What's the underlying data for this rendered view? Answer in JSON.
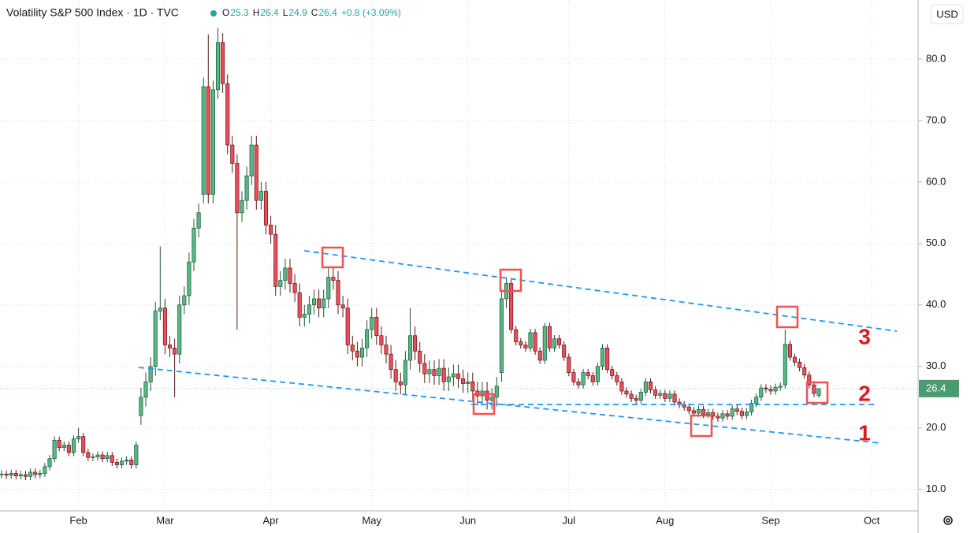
{
  "chart_data": {
    "type": "candlestick",
    "title": "Volatility S&P 500 Index · 1D · TVC",
    "ohlc_legend": [
      {
        "key": "O",
        "value": 25.3
      },
      {
        "key": "H",
        "value": 26.4
      },
      {
        "key": "L",
        "value": 24.9
      },
      {
        "key": "C",
        "value": 26.4
      }
    ],
    "change": "+0.8 (+3.09%)",
    "currency": "USD",
    "last_value": 26.4,
    "annotations": [
      "3",
      "2",
      "1"
    ],
    "up_color": "#53b987",
    "down_color": "#eb4d5c",
    "grid": true,
    "ylim": [
      6.5,
      89.6
    ],
    "yticks": [
      {
        "value": 10,
        "label": "10.0"
      },
      {
        "value": 20,
        "label": "20.0"
      },
      {
        "value": 30,
        "label": "30.0"
      },
      {
        "value": 40,
        "label": "40.0"
      },
      {
        "value": 50,
        "label": "50.0"
      },
      {
        "value": 60,
        "label": "60.0"
      },
      {
        "value": 70,
        "label": "70.0"
      },
      {
        "value": 80,
        "label": "80.0"
      }
    ],
    "categories": [
      null,
      null,
      null,
      null,
      null,
      null,
      null,
      null,
      null,
      null,
      null,
      null,
      null,
      null,
      null,
      null,
      "Feb",
      null,
      null,
      null,
      null,
      null,
      null,
      null,
      null,
      null,
      null,
      null,
      null,
      null,
      null,
      null,
      null,
      null,
      "Mar",
      null,
      null,
      null,
      null,
      null,
      null,
      null,
      null,
      null,
      null,
      null,
      null,
      null,
      null,
      null,
      null,
      null,
      null,
      null,
      null,
      null,
      "Apr",
      null,
      null,
      null,
      null,
      null,
      null,
      null,
      null,
      null,
      null,
      null,
      null,
      null,
      null,
      null,
      null,
      null,
      null,
      null,
      null,
      "May",
      null,
      null,
      null,
      null,
      null,
      null,
      null,
      null,
      null,
      null,
      null,
      null,
      null,
      null,
      null,
      null,
      null,
      null,
      null,
      "Jun",
      null,
      null,
      null,
      null,
      null,
      null,
      null,
      null,
      null,
      null,
      null,
      null,
      null,
      null,
      null,
      null,
      null,
      null,
      null,
      null,
      "Jul",
      null,
      null,
      null,
      null,
      null,
      null,
      null,
      null,
      null,
      null,
      null,
      null,
      null,
      null,
      null,
      null,
      null,
      null,
      null,
      "Aug",
      null,
      null,
      null,
      null,
      null,
      null,
      null,
      null,
      null,
      null,
      null,
      null,
      null,
      null,
      null,
      null,
      null,
      null,
      null,
      null,
      null,
      "Sep",
      null,
      null,
      null,
      null,
      null,
      null,
      null,
      null,
      null,
      null,
      null,
      null,
      null,
      null,
      null,
      null,
      null,
      null,
      null,
      null,
      "Oct"
    ],
    "open": [
      12.4,
      12.5,
      12.3,
      12.6,
      12.2,
      12.4,
      12.1,
      12.8,
      12.4,
      12.6,
      13.7,
      15.0,
      18.0,
      16.8,
      17.2,
      16.0,
      18.2,
      18.6,
      16.0,
      15.2,
      15.3,
      15.6,
      15.0,
      15.5,
      14.4,
      14.0,
      14.6,
      14.8,
      14.0,
      22.0,
      25.0,
      27.5,
      30.0,
      39.0,
      39.5,
      33.5,
      33.0,
      32.0,
      40.0,
      41.5,
      47.0,
      52.5,
      58.0,
      75.5,
      58.0,
      75.0,
      82.7,
      76.0,
      66.0,
      63.0,
      55.0,
      57.0,
      61.0,
      66.0,
      57.0,
      58.5,
      53.0,
      51.5,
      43.0,
      44.0,
      46.0,
      43.5,
      42.0,
      38.0,
      38.5,
      40.0,
      41.0,
      39.5,
      41.0,
      44.5,
      44.0,
      40.0,
      39.5,
      33.5,
      32.5,
      31.5,
      33.0,
      36.0,
      38.0,
      35.0,
      33.5,
      32.0,
      29.5,
      27.5,
      27.0,
      31.0,
      35.0,
      32.5,
      30.5,
      28.8,
      29.5,
      28.5,
      29.7,
      27.5,
      28.3,
      28.8,
      28.0,
      27.2,
      27.5,
      26.0,
      25.2,
      26.0,
      24.5,
      25.0,
      29.0,
      41.0,
      43.5,
      36.0,
      34.0,
      33.5,
      33.0,
      35.5,
      32.5,
      31.0,
      36.5,
      33.0,
      34.5,
      33.5,
      31.5,
      29.0,
      27.5,
      27.0,
      29.0,
      28.5,
      27.5,
      30.0,
      33.0,
      29.5,
      28.5,
      27.5,
      26.0,
      25.5,
      24.8,
      24.5,
      25.8,
      27.5,
      26.2,
      25.3,
      25.6,
      24.8,
      25.5,
      24.2,
      23.8,
      23.4,
      22.8,
      22.4,
      23.0,
      22.2,
      22.5,
      21.9,
      21.6,
      22.3,
      21.9,
      23.1,
      22.7,
      22.0,
      22.6,
      24.0,
      25.0,
      26.5,
      26.3,
      26.0,
      26.6,
      27.0,
      33.6,
      31.5,
      30.7,
      29.8,
      28.6,
      27.0,
      25.3,
      null,
      null,
      null,
      null,
      null,
      null,
      null,
      null,
      null,
      null,
      null
    ],
    "high": [
      13.1,
      13.1,
      13.2,
      13.2,
      13.0,
      13.0,
      13.4,
      13.4,
      13.2,
      14.3,
      15.6,
      18.6,
      18.6,
      17.8,
      17.8,
      18.8,
      20.0,
      19.2,
      16.6,
      15.9,
      16.2,
      16.2,
      16.1,
      16.1,
      15.0,
      15.2,
      15.4,
      15.4,
      17.8,
      26.5,
      29.0,
      31.5,
      40.5,
      49.5,
      41.0,
      35.0,
      34.5,
      41.5,
      43.0,
      48.5,
      54.0,
      56.5,
      77.0,
      84.0,
      76.5,
      85.0,
      84.2,
      77.5,
      67.5,
      64.5,
      58.5,
      62.5,
      67.5,
      67.5,
      60.0,
      60.0,
      54.5,
      53.0,
      45.5,
      47.5,
      47.5,
      45.0,
      43.5,
      40.0,
      41.5,
      42.5,
      42.5,
      42.5,
      46.0,
      46.0,
      45.5,
      41.5,
      41.0,
      35.0,
      34.0,
      34.5,
      37.5,
      39.5,
      39.5,
      36.5,
      35.0,
      33.5,
      31.0,
      29.0,
      32.5,
      39.5,
      36.5,
      34.0,
      32.0,
      31.0,
      31.0,
      31.2,
      31.2,
      29.8,
      30.3,
      30.3,
      29.5,
      29.0,
      29.0,
      27.5,
      27.5,
      27.5,
      26.5,
      28.3,
      42.5,
      44.5,
      44.1,
      36.6,
      34.6,
      34.1,
      36.1,
      36.1,
      33.1,
      37.1,
      37.1,
      35.1,
      35.1,
      34.1,
      32.1,
      29.6,
      28.1,
      29.6,
      29.6,
      29.1,
      30.6,
      33.6,
      33.6,
      30.1,
      29.1,
      28.1,
      26.6,
      26.1,
      25.4,
      26.4,
      28.1,
      28.1,
      26.8,
      26.2,
      26.2,
      26.1,
      26.1,
      24.8,
      24.4,
      24.0,
      23.4,
      23.6,
      23.6,
      23.1,
      23.1,
      22.5,
      22.9,
      22.9,
      23.7,
      23.7,
      23.3,
      23.2,
      24.6,
      25.6,
      27.1,
      27.1,
      26.9,
      27.2,
      27.4,
      36.0,
      34.2,
      32.1,
      31.3,
      30.4,
      29.2,
      27.6,
      26.4,
      null,
      null,
      null,
      null,
      null,
      null,
      null,
      null,
      null,
      null,
      null
    ],
    "low": [
      11.8,
      11.7,
      11.7,
      11.6,
      11.6,
      11.5,
      11.5,
      11.8,
      11.8,
      12.0,
      13.1,
      14.4,
      16.2,
      16.2,
      15.4,
      15.4,
      17.6,
      15.4,
      14.6,
      14.6,
      14.7,
      14.4,
      14.4,
      13.8,
      13.4,
      13.4,
      14.0,
      13.4,
      13.4,
      20.5,
      23.5,
      26.0,
      28.5,
      37.5,
      32.0,
      31.5,
      25.0,
      30.5,
      38.5,
      40.0,
      45.5,
      51.0,
      56.5,
      56.5,
      56.5,
      73.5,
      74.5,
      64.5,
      61.5,
      36.0,
      53.5,
      55.5,
      59.5,
      55.5,
      55.5,
      51.5,
      50.0,
      41.5,
      41.5,
      42.5,
      42.0,
      40.5,
      36.5,
      36.5,
      37.0,
      38.5,
      38.0,
      38.0,
      39.5,
      42.5,
      38.5,
      38.0,
      32.0,
      31.0,
      30.0,
      30.0,
      31.5,
      34.5,
      33.5,
      32.0,
      30.5,
      28.0,
      26.0,
      25.5,
      25.5,
      29.5,
      31.0,
      29.0,
      27.3,
      27.3,
      27.0,
      27.0,
      26.0,
      26.0,
      26.8,
      26.5,
      25.7,
      25.7,
      24.5,
      23.7,
      23.7,
      23.0,
      23.0,
      23.5,
      27.5,
      39.5,
      35.4,
      33.4,
      32.9,
      32.4,
      32.4,
      31.9,
      30.4,
      30.4,
      32.4,
      32.4,
      32.9,
      30.9,
      28.4,
      26.9,
      26.4,
      26.4,
      27.9,
      26.9,
      26.9,
      29.4,
      28.9,
      27.9,
      26.9,
      25.4,
      24.9,
      24.2,
      23.9,
      23.9,
      25.2,
      25.6,
      24.7,
      24.7,
      24.2,
      24.2,
      23.6,
      23.2,
      22.8,
      22.2,
      21.8,
      21.8,
      21.6,
      21.6,
      21.3,
      21.0,
      21.0,
      21.3,
      21.3,
      22.1,
      21.4,
      21.4,
      22.0,
      23.4,
      24.4,
      25.7,
      25.4,
      25.4,
      26.0,
      26.4,
      30.9,
      30.1,
      29.2,
      28.0,
      26.4,
      25.0,
      24.9,
      null,
      null,
      null,
      null,
      null,
      null,
      null,
      null,
      null,
      null,
      null
    ],
    "close": [
      12.5,
      12.3,
      12.6,
      12.2,
      12.4,
      12.1,
      12.8,
      12.4,
      12.6,
      13.7,
      15.0,
      18.0,
      16.8,
      17.2,
      16.0,
      18.2,
      18.6,
      16.0,
      15.2,
      15.3,
      15.6,
      15.0,
      15.5,
      14.4,
      14.0,
      14.6,
      14.8,
      14.0,
      17.2,
      25.0,
      27.5,
      30.0,
      39.0,
      39.5,
      33.5,
      33.0,
      32.0,
      40.0,
      41.5,
      47.0,
      52.5,
      55.0,
      75.5,
      58.0,
      75.0,
      82.7,
      76.0,
      66.0,
      63.0,
      55.0,
      57.0,
      61.0,
      66.0,
      57.0,
      58.5,
      53.0,
      51.5,
      43.0,
      44.0,
      46.0,
      43.5,
      42.0,
      38.0,
      38.5,
      40.0,
      41.0,
      39.5,
      41.0,
      44.5,
      44.0,
      40.0,
      39.5,
      33.5,
      32.5,
      31.5,
      33.0,
      36.0,
      38.0,
      35.0,
      33.5,
      32.0,
      29.5,
      27.5,
      27.0,
      31.0,
      35.0,
      32.5,
      30.5,
      28.8,
      29.5,
      28.5,
      29.7,
      27.5,
      28.3,
      28.8,
      28.0,
      27.2,
      27.5,
      26.0,
      25.2,
      26.0,
      24.5,
      25.0,
      26.8,
      41.0,
      43.5,
      36.0,
      34.0,
      33.5,
      33.0,
      35.5,
      32.5,
      31.0,
      36.5,
      33.0,
      34.5,
      33.5,
      31.5,
      29.0,
      27.5,
      27.0,
      29.0,
      28.5,
      27.5,
      30.0,
      33.0,
      29.5,
      28.5,
      27.5,
      26.0,
      25.5,
      24.8,
      24.5,
      25.8,
      27.5,
      26.2,
      25.3,
      25.6,
      24.8,
      25.5,
      24.2,
      23.8,
      23.4,
      22.8,
      22.4,
      23.0,
      22.2,
      22.5,
      21.9,
      21.6,
      22.3,
      21.9,
      23.1,
      22.7,
      22.0,
      22.6,
      24.0,
      25.0,
      26.5,
      26.3,
      26.0,
      26.6,
      26.8,
      33.6,
      31.5,
      30.7,
      29.8,
      28.6,
      27.0,
      25.6,
      26.4,
      null,
      null,
      null,
      null,
      null,
      null,
      null,
      null,
      null,
      null,
      null
    ]
  }
}
